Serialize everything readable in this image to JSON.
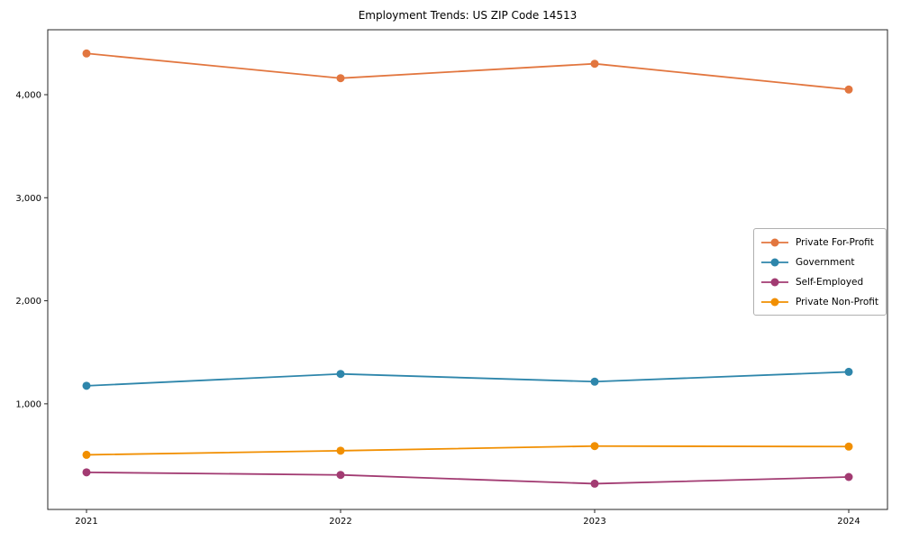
{
  "title": "Employment Trends: US ZIP Code 14513",
  "chart_data": {
    "type": "line",
    "categories": [
      "2021",
      "2022",
      "2023",
      "2024"
    ],
    "series": [
      {
        "name": "Private For-Profit",
        "color": "#e2763f",
        "values": [
          4400,
          4160,
          4300,
          4050
        ]
      },
      {
        "name": "Government",
        "color": "#2e86ab",
        "values": [
          1175,
          1290,
          1215,
          1310
        ]
      },
      {
        "name": "Self-Employed",
        "color": "#a23b72",
        "values": [
          335,
          310,
          225,
          290
        ]
      },
      {
        "name": "Private Non-Profit",
        "color": "#f18f01",
        "values": [
          505,
          545,
          590,
          585
        ]
      }
    ],
    "yticks": [
      1000,
      2000,
      3000,
      4000
    ],
    "ytick_labels": [
      "1,000",
      "2,000",
      "3,000",
      "4,000"
    ],
    "ylim": [
      -25,
      4630
    ],
    "xlabel": "",
    "ylabel": "",
    "grid": false,
    "legend_position": "center right",
    "marker": "circle",
    "frame_color": "#262626"
  }
}
